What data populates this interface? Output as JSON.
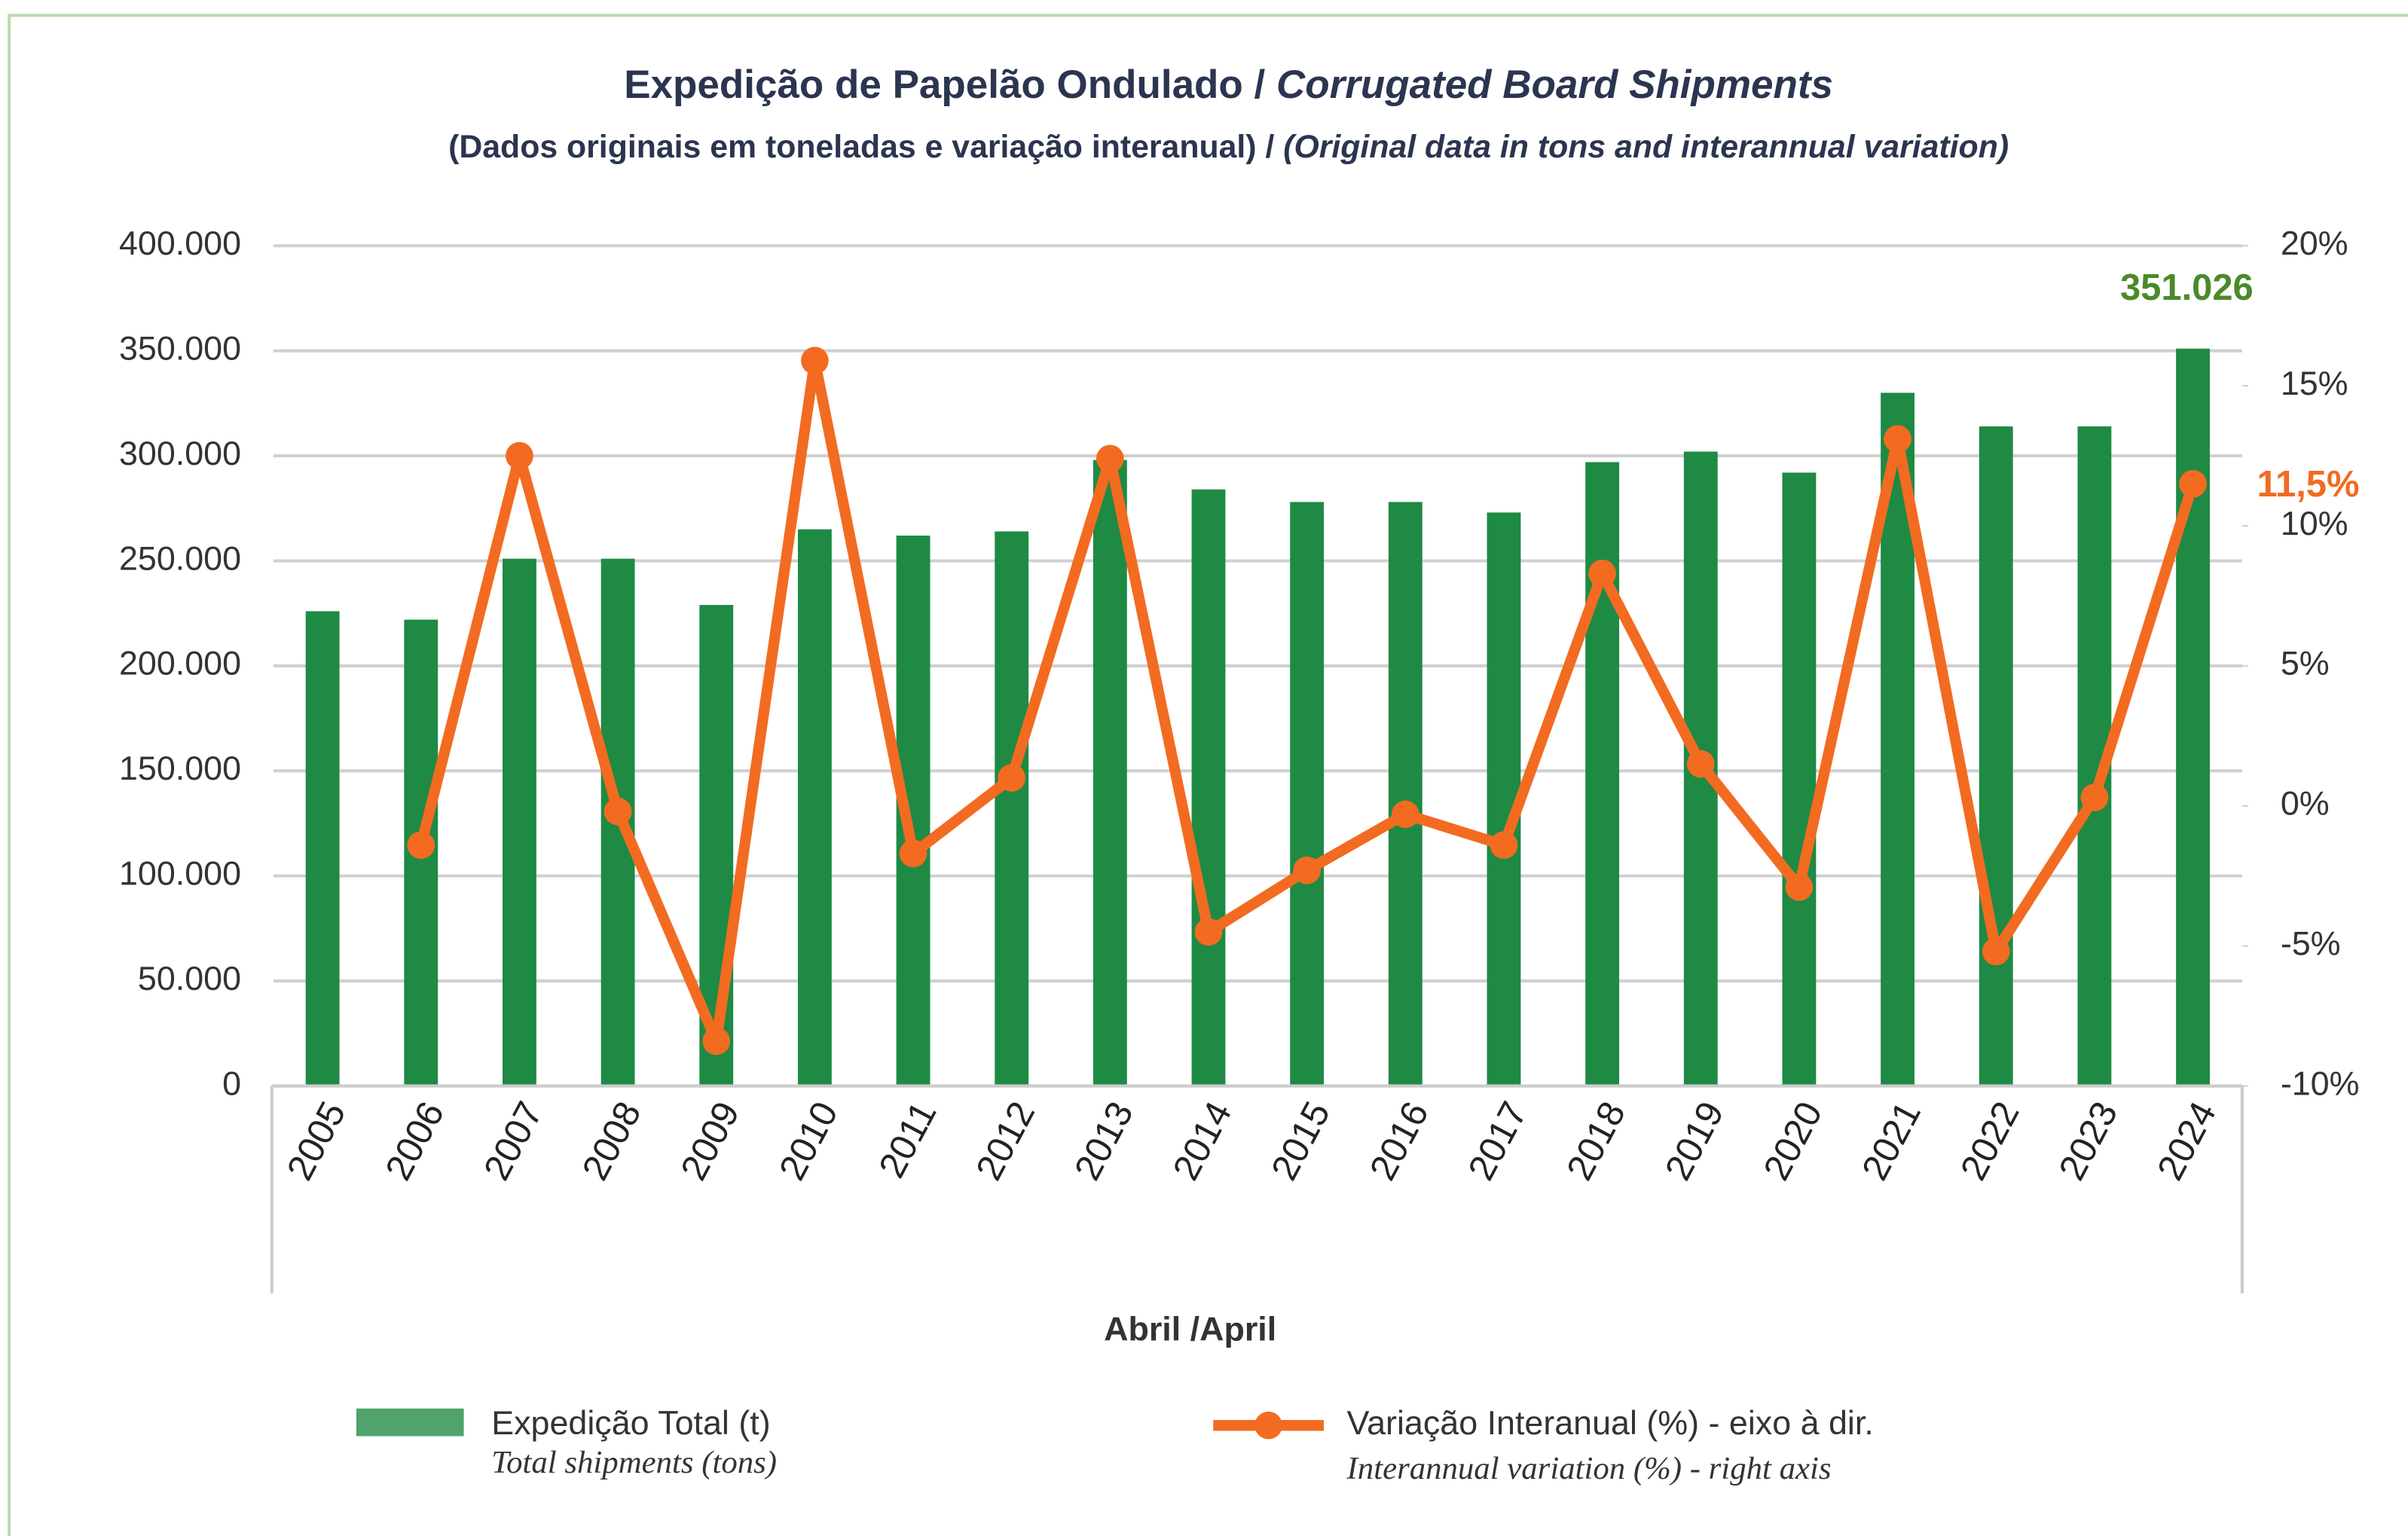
{
  "chart_data": {
    "type": "bar",
    "title": {
      "pt": "Expedição de Papelão Ondulado /",
      "en": "Corrugated Board Shipments"
    },
    "subtitle": {
      "pt": "(Dados originais em toneladas e variação interanual) /",
      "en": "(Original data in tons and interannual variation)"
    },
    "x_label": "Abril /April",
    "categories": [
      "2005",
      "2006",
      "2007",
      "2008",
      "2009",
      "2010",
      "2011",
      "2012",
      "2013",
      "2014",
      "2015",
      "2016",
      "2017",
      "2018",
      "2019",
      "2020",
      "2021",
      "2022",
      "2023",
      "2024"
    ],
    "series": [
      {
        "name": "Expedição Total (t)",
        "name_en": "Total shipments (tons)",
        "type": "bar",
        "color": "#1e8a44",
        "legend_color": "#4fa36b",
        "values": [
          226000,
          222000,
          251000,
          251000,
          229000,
          265000,
          262000,
          264000,
          298000,
          284000,
          278000,
          278000,
          273000,
          297000,
          302000,
          292000,
          330000,
          314000,
          314000,
          351026
        ],
        "value_labels": [
          null,
          null,
          null,
          null,
          null,
          null,
          null,
          null,
          null,
          null,
          null,
          null,
          null,
          null,
          null,
          null,
          null,
          null,
          null,
          "351.026"
        ],
        "label_color": "#4a8a2a"
      },
      {
        "name": "Variação Interanual (%) - eixo à dir.",
        "name_en": "Interannual variation (%) - right axis",
        "type": "line",
        "axis": "y2",
        "color": "#f26b21",
        "values": [
          null,
          -1.4,
          12.5,
          -0.2,
          -8.4,
          15.9,
          -1.7,
          1.0,
          12.4,
          -4.5,
          -2.3,
          -0.3,
          -1.4,
          8.3,
          1.5,
          -2.9,
          13.1,
          -5.2,
          0.3,
          11.5
        ],
        "value_labels": [
          null,
          null,
          null,
          null,
          null,
          null,
          null,
          null,
          null,
          null,
          null,
          null,
          null,
          null,
          null,
          null,
          null,
          null,
          null,
          "11,5%"
        ],
        "label_color": "#f26b21"
      }
    ],
    "ylim": [
      0,
      400000
    ],
    "yticks": [
      0,
      {
        "value": 50000,
        "label": "50.000"
      },
      {
        "value": 100000,
        "label": "100.000"
      },
      {
        "value": 150000,
        "label": "150.000"
      },
      {
        "value": 200000,
        "label": "200.000"
      },
      {
        "value": 250000,
        "label": "250.000"
      },
      {
        "value": 300000,
        "label": "300.000"
      },
      {
        "value": 350000,
        "label": "350.000"
      },
      {
        "value": 400000,
        "label": "400.000"
      }
    ],
    "y2lim": [
      -10,
      20
    ],
    "y2ticks": [
      {
        "value": -10,
        "label": "-10%"
      },
      {
        "value": -5,
        "label": "-5%"
      },
      {
        "value": 0,
        "label": "0%"
      },
      {
        "value": 5,
        "label": "5%"
      },
      {
        "value": 10,
        "label": "10%"
      },
      {
        "value": 15,
        "label": "15%"
      },
      {
        "value": 20,
        "label": "20%"
      }
    ],
    "grid": true
  }
}
